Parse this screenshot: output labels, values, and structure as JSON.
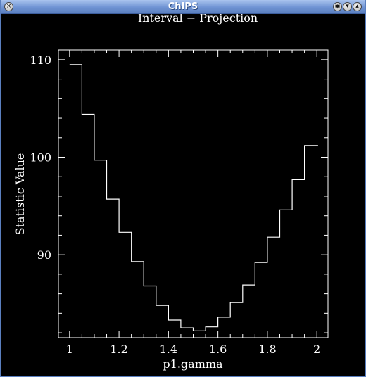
{
  "window": {
    "title": "ChIPS",
    "close_glyph": "×",
    "shade_glyph": "◉",
    "minimize_glyph": "▾",
    "maximize_glyph": "▴"
  },
  "chart_data": {
    "type": "line",
    "step": true,
    "title": "Interval − Projection",
    "xlabel": "p1.gamma",
    "ylabel": "Statistic Value",
    "xlim": [
      0.955,
      2.045
    ],
    "ylim": [
      81.5,
      111
    ],
    "xticks": [
      1,
      1.2,
      1.4,
      1.6,
      1.8,
      2
    ],
    "xtick_labels": [
      "1",
      "1.2",
      "1.4",
      "1.6",
      "1.8",
      "2"
    ],
    "yticks": [
      90,
      100,
      110
    ],
    "ytick_labels": [
      "90",
      "100",
      "110"
    ],
    "grid": false,
    "color": "#ffffff",
    "background": "#000000",
    "x": [
      1.0,
      1.05,
      1.1,
      1.15,
      1.2,
      1.25,
      1.3,
      1.35,
      1.4,
      1.45,
      1.5,
      1.55,
      1.6,
      1.65,
      1.7,
      1.75,
      1.8,
      1.85,
      1.9,
      1.95,
      2.0
    ],
    "y": [
      109.5,
      104.4,
      99.7,
      95.7,
      92.3,
      89.3,
      86.8,
      84.8,
      83.3,
      82.5,
      82.2,
      82.6,
      83.6,
      85.1,
      86.9,
      89.2,
      91.8,
      94.6,
      97.7,
      101.2,
      101.2
    ]
  }
}
